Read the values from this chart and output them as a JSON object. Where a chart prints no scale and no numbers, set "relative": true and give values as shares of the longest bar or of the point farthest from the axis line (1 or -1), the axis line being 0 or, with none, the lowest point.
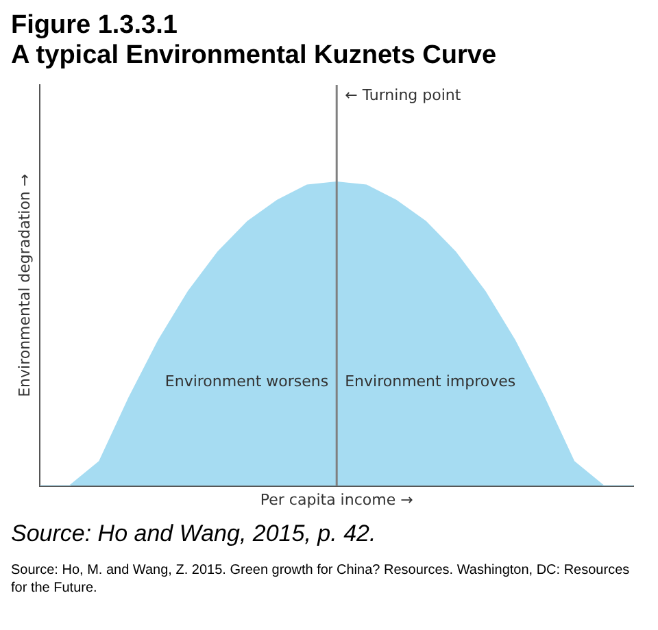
{
  "chart_data": {
    "type": "area",
    "title": "Figure 1.3.3.1",
    "subtitle": "A typical Environmental Kuznets Curve",
    "xlabel": "Per capita income →",
    "ylabel": "Environmental degradation →",
    "relative": true,
    "grid": false,
    "legend": false,
    "marker": "none",
    "categories": [
      null,
      null,
      null,
      null,
      null,
      null,
      null,
      null,
      null,
      null,
      null,
      null,
      null,
      null,
      null,
      null,
      null,
      null,
      null,
      null,
      null
    ],
    "series": [
      {
        "color": "#a6dcf2",
        "values": [
          0,
          0,
          0.08,
          0.29,
          0.48,
          0.64,
          0.77,
          0.87,
          0.94,
          0.99,
          1,
          0.99,
          0.94,
          0.87,
          0.77,
          0.64,
          0.48,
          0.29,
          0.08,
          0,
          0
        ]
      }
    ],
    "annotations": [
      "← Turning point",
      "Environment worsens",
      "Environment improves",
      "Source: Ho and Wang, 2015, p. 42.",
      "Source: Ho, M. and Wang, Z. 2015. Green growth for China? Resources. Washington, DC: Resources for the Future."
    ]
  }
}
